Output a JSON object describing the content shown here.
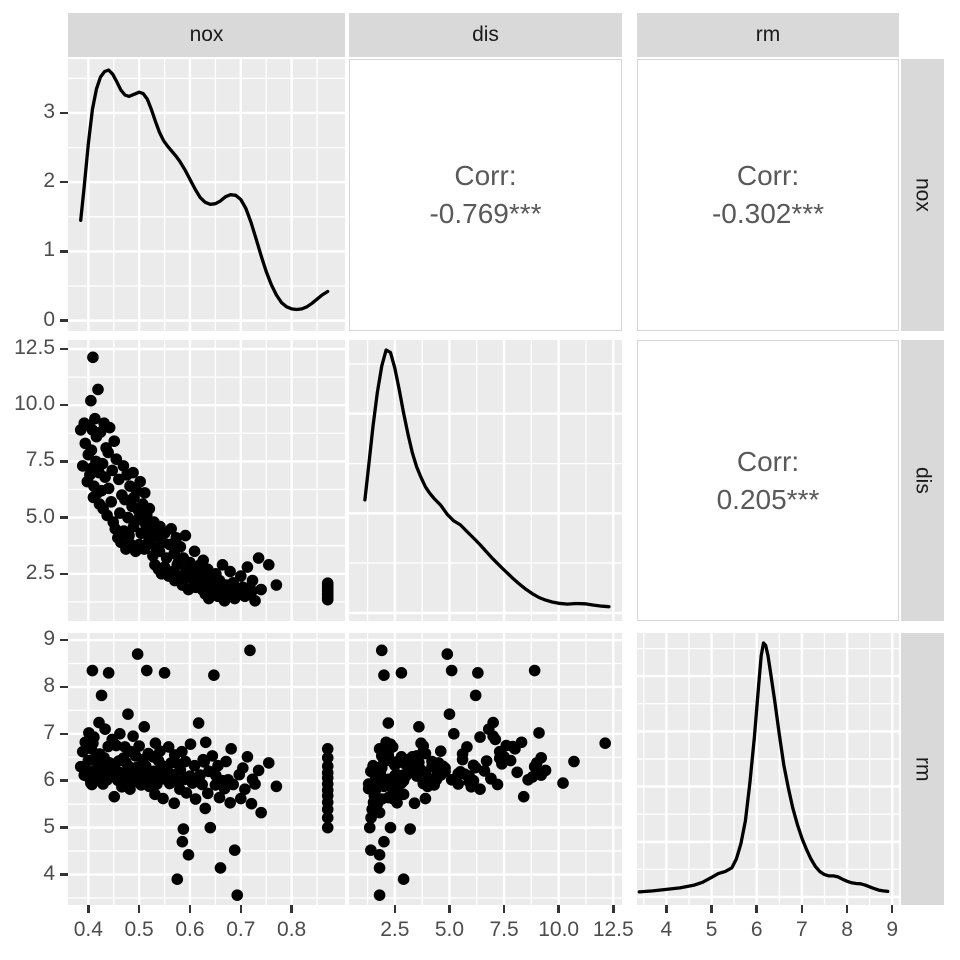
{
  "figure": {
    "kind": "ggpairs-matrix",
    "variables": [
      "nox",
      "dis",
      "rm"
    ]
  },
  "strips": {
    "top": [
      "nox",
      "dis",
      "rm"
    ],
    "right": [
      "nox",
      "dis",
      "rm"
    ]
  },
  "colors": {
    "panel_bg": "#EBEBEB",
    "strip_bg": "#D9D9D9",
    "grid": "#FFFFFF",
    "line": "#000000",
    "point": "#000000",
    "axis_text": "#4D4D4D",
    "corr_text": "#595959",
    "corr_border": "#D6D6D6",
    "strip_text": "#1A1A1A"
  },
  "axes": {
    "nox": {
      "ticks": [
        0.4,
        0.5,
        0.6,
        0.7,
        0.8
      ],
      "labels": [
        "0.4",
        "0.5",
        "0.6",
        "0.7",
        "0.8"
      ],
      "minor": [
        0.45,
        0.55,
        0.65,
        0.75,
        0.85
      ],
      "range": [
        0.36,
        0.905
      ]
    },
    "dis": {
      "ticks": [
        2.5,
        5.0,
        7.5,
        10.0,
        12.5
      ],
      "labels": [
        "2.5",
        "5.0",
        "7.5",
        "10.0",
        "12.5"
      ],
      "minor": [
        1.25,
        3.75,
        6.25,
        8.75,
        11.25
      ],
      "range": [
        0.4,
        12.9
      ]
    },
    "rm": {
      "ticks": [
        4,
        5,
        6,
        7,
        8,
        9
      ],
      "labels": [
        "4",
        "5",
        "6",
        "7",
        "8",
        "9"
      ],
      "minor": [
        3.5,
        4.5,
        5.5,
        6.5,
        7.5,
        8.5
      ],
      "range": [
        3.35,
        9.15
      ]
    },
    "nox_density_y": {
      "ticks": [
        0,
        1,
        2,
        3
      ],
      "labels": [
        "0",
        "1",
        "2",
        "3"
      ],
      "minor": [
        0.5,
        1.5,
        2.5,
        3.5
      ],
      "range": [
        -0.15,
        3.78
      ]
    }
  },
  "chart_data": [
    {
      "row": "nox",
      "col": "nox",
      "type": "density",
      "x_var": "nox",
      "y_axis": "nox_density_y",
      "points": [
        [
          0.385,
          1.45
        ],
        [
          0.392,
          1.95
        ],
        [
          0.4,
          2.55
        ],
        [
          0.408,
          3.05
        ],
        [
          0.416,
          3.35
        ],
        [
          0.424,
          3.52
        ],
        [
          0.432,
          3.6
        ],
        [
          0.44,
          3.62
        ],
        [
          0.448,
          3.56
        ],
        [
          0.456,
          3.45
        ],
        [
          0.464,
          3.33
        ],
        [
          0.472,
          3.26
        ],
        [
          0.48,
          3.24
        ],
        [
          0.49,
          3.27
        ],
        [
          0.5,
          3.3
        ],
        [
          0.508,
          3.28
        ],
        [
          0.516,
          3.2
        ],
        [
          0.524,
          3.05
        ],
        [
          0.532,
          2.88
        ],
        [
          0.54,
          2.72
        ],
        [
          0.548,
          2.6
        ],
        [
          0.556,
          2.52
        ],
        [
          0.564,
          2.45
        ],
        [
          0.572,
          2.38
        ],
        [
          0.58,
          2.3
        ],
        [
          0.59,
          2.18
        ],
        [
          0.6,
          2.04
        ],
        [
          0.61,
          1.9
        ],
        [
          0.62,
          1.78
        ],
        [
          0.63,
          1.71
        ],
        [
          0.64,
          1.68
        ],
        [
          0.65,
          1.69
        ],
        [
          0.66,
          1.73
        ],
        [
          0.67,
          1.79
        ],
        [
          0.68,
          1.82
        ],
        [
          0.69,
          1.81
        ],
        [
          0.7,
          1.75
        ],
        [
          0.71,
          1.62
        ],
        [
          0.72,
          1.42
        ],
        [
          0.73,
          1.18
        ],
        [
          0.74,
          0.94
        ],
        [
          0.75,
          0.71
        ],
        [
          0.76,
          0.52
        ],
        [
          0.77,
          0.37
        ],
        [
          0.78,
          0.26
        ],
        [
          0.79,
          0.2
        ],
        [
          0.8,
          0.17
        ],
        [
          0.81,
          0.16
        ],
        [
          0.82,
          0.17
        ],
        [
          0.83,
          0.2
        ],
        [
          0.84,
          0.25
        ],
        [
          0.85,
          0.31
        ],
        [
          0.86,
          0.37
        ],
        [
          0.871,
          0.42
        ]
      ]
    },
    {
      "row": "nox",
      "col": "dis",
      "type": "corr",
      "label_lines": [
        "Corr:",
        "-0.769***"
      ],
      "value": -0.769,
      "significance": "***"
    },
    {
      "row": "nox",
      "col": "rm",
      "type": "corr",
      "label_lines": [
        "Corr:",
        "-0.302***"
      ],
      "value": -0.302,
      "significance": "***"
    },
    {
      "row": "dis",
      "col": "nox",
      "type": "scatter",
      "x_var": "nox",
      "y_var": "dis",
      "x_index": 0,
      "y_index": 1
    },
    {
      "row": "dis",
      "col": "dis",
      "type": "density",
      "x_var": "dis",
      "y_scale": "relative",
      "y_grid_major_rel": [
        0,
        0.379,
        0.758
      ],
      "y_grid_minor_rel": [
        0.19,
        0.568,
        0.947
      ],
      "points": [
        [
          1.13,
          0.43
        ],
        [
          1.3,
          0.56
        ],
        [
          1.5,
          0.71
        ],
        [
          1.7,
          0.84
        ],
        [
          1.9,
          0.94
        ],
        [
          2.1,
          1.0
        ],
        [
          2.3,
          0.99
        ],
        [
          2.5,
          0.93
        ],
        [
          2.7,
          0.85
        ],
        [
          2.9,
          0.76
        ],
        [
          3.1,
          0.68
        ],
        [
          3.3,
          0.61
        ],
        [
          3.5,
          0.555
        ],
        [
          3.7,
          0.515
        ],
        [
          3.9,
          0.48
        ],
        [
          4.1,
          0.455
        ],
        [
          4.3,
          0.435
        ],
        [
          4.6,
          0.41
        ],
        [
          4.9,
          0.375
        ],
        [
          5.2,
          0.35
        ],
        [
          5.5,
          0.335
        ],
        [
          5.8,
          0.31
        ],
        [
          6.1,
          0.285
        ],
        [
          6.4,
          0.26
        ],
        [
          6.7,
          0.232
        ],
        [
          7.0,
          0.205
        ],
        [
          7.3,
          0.18
        ],
        [
          7.6,
          0.156
        ],
        [
          7.9,
          0.132
        ],
        [
          8.2,
          0.11
        ],
        [
          8.5,
          0.09
        ],
        [
          8.8,
          0.073
        ],
        [
          9.1,
          0.059
        ],
        [
          9.4,
          0.049
        ],
        [
          9.7,
          0.042
        ],
        [
          10.0,
          0.037
        ],
        [
          10.4,
          0.034
        ],
        [
          10.8,
          0.036
        ],
        [
          11.2,
          0.035
        ],
        [
          11.6,
          0.03
        ],
        [
          12.0,
          0.026
        ],
        [
          12.3,
          0.024
        ]
      ]
    },
    {
      "row": "dis",
      "col": "rm",
      "type": "corr",
      "label_lines": [
        "Corr:",
        "0.205***"
      ],
      "value": 0.205,
      "significance": "***"
    },
    {
      "row": "rm",
      "col": "nox",
      "type": "scatter",
      "x_var": "nox",
      "y_var": "rm",
      "x_index": 0,
      "y_index": 2
    },
    {
      "row": "rm",
      "col": "dis",
      "type": "scatter",
      "x_var": "dis",
      "y_var": "rm",
      "x_index": 1,
      "y_index": 2
    },
    {
      "row": "rm",
      "col": "rm",
      "type": "density",
      "x_var": "rm",
      "y_scale": "relative",
      "y_grid_major_rel": [
        0,
        0.217,
        0.435,
        0.652,
        0.87
      ],
      "y_grid_minor_rel": [
        0.109,
        0.326,
        0.543,
        0.761,
        0.978
      ],
      "points": [
        [
          3.4,
          0.02
        ],
        [
          3.7,
          0.024
        ],
        [
          4.0,
          0.03
        ],
        [
          4.3,
          0.036
        ],
        [
          4.6,
          0.046
        ],
        [
          4.8,
          0.058
        ],
        [
          5.0,
          0.077
        ],
        [
          5.15,
          0.092
        ],
        [
          5.3,
          0.1
        ],
        [
          5.45,
          0.115
        ],
        [
          5.55,
          0.15
        ],
        [
          5.65,
          0.21
        ],
        [
          5.75,
          0.3
        ],
        [
          5.85,
          0.45
        ],
        [
          5.95,
          0.63
        ],
        [
          6.0,
          0.74
        ],
        [
          6.05,
          0.85
        ],
        [
          6.1,
          0.95
        ],
        [
          6.15,
          1.0
        ],
        [
          6.2,
          0.99
        ],
        [
          6.25,
          0.95
        ],
        [
          6.3,
          0.89
        ],
        [
          6.4,
          0.77
        ],
        [
          6.5,
          0.64
        ],
        [
          6.6,
          0.52
        ],
        [
          6.7,
          0.43
        ],
        [
          6.8,
          0.35
        ],
        [
          6.9,
          0.285
        ],
        [
          7.0,
          0.232
        ],
        [
          7.1,
          0.188
        ],
        [
          7.2,
          0.15
        ],
        [
          7.3,
          0.12
        ],
        [
          7.4,
          0.1
        ],
        [
          7.5,
          0.088
        ],
        [
          7.6,
          0.083
        ],
        [
          7.7,
          0.083
        ],
        [
          7.8,
          0.079
        ],
        [
          7.9,
          0.07
        ],
        [
          8.0,
          0.062
        ],
        [
          8.1,
          0.056
        ],
        [
          8.2,
          0.053
        ],
        [
          8.3,
          0.052
        ],
        [
          8.4,
          0.047
        ],
        [
          8.5,
          0.04
        ],
        [
          8.6,
          0.033
        ],
        [
          8.7,
          0.027
        ],
        [
          8.8,
          0.024
        ],
        [
          8.9,
          0.022
        ]
      ]
    }
  ],
  "observations": [
    [
      0.385,
      8.9,
      6.3
    ],
    [
      0.389,
      7.3,
      6.62
    ],
    [
      0.392,
      9.2,
      6.12
    ],
    [
      0.394,
      8.3,
      6.82
    ],
    [
      0.398,
      6.6,
      6.21
    ],
    [
      0.4,
      7.8,
      6.43
    ],
    [
      0.401,
      9.1,
      7.02
    ],
    [
      0.403,
      6.9,
      6.04
    ],
    [
      0.405,
      10.2,
      5.95
    ],
    [
      0.406,
      8.0,
      6.68
    ],
    [
      0.407,
      7.2,
      5.92
    ],
    [
      0.409,
      12.13,
      6.8
    ],
    [
      0.41,
      5.9,
      6.1
    ],
    [
      0.411,
      6.4,
      6.93
    ],
    [
      0.408,
      8.9,
      8.35
    ],
    [
      0.413,
      9.4,
      6.22
    ],
    [
      0.415,
      7.5,
      6.51
    ],
    [
      0.416,
      8.6,
      6.02
    ],
    [
      0.418,
      6.1,
      6.33
    ],
    [
      0.419,
      10.7,
      6.41
    ],
    [
      0.421,
      7.0,
      7.24
    ],
    [
      0.422,
      5.6,
      6.57
    ],
    [
      0.424,
      8.8,
      6.08
    ],
    [
      0.426,
      6.2,
      7.82
    ],
    [
      0.428,
      7.4,
      6.36
    ],
    [
      0.429,
      5.4,
      5.93
    ],
    [
      0.431,
      9.2,
      6.49
    ],
    [
      0.433,
      6.8,
      7.1
    ],
    [
      0.435,
      8.1,
      6.18
    ],
    [
      0.437,
      5.1,
      6.02
    ],
    [
      0.439,
      7.9,
      6.73
    ],
    [
      0.44,
      6.3,
      8.3
    ],
    [
      0.442,
      9.0,
      6.38
    ],
    [
      0.445,
      5.7,
      6.14
    ],
    [
      0.447,
      7.1,
      6.88
    ],
    [
      0.449,
      4.8,
      6.27
    ],
    [
      0.451,
      8.4,
      5.66
    ],
    [
      0.453,
      4.5,
      6.23
    ],
    [
      0.455,
      7.6,
      6.75
    ],
    [
      0.458,
      4.1,
      6.01
    ],
    [
      0.46,
      6.7,
      6.42
    ],
    [
      0.462,
      5.2,
      7.0
    ],
    [
      0.464,
      3.9,
      6.17
    ],
    [
      0.466,
      6.0,
      5.87
    ],
    [
      0.469,
      7.3,
      6.48
    ],
    [
      0.47,
      4.4,
      6.09
    ],
    [
      0.472,
      5.8,
      6.72
    ],
    [
      0.474,
      3.6,
      6.39
    ],
    [
      0.476,
      6.9,
      6.05
    ],
    [
      0.478,
      5.0,
      7.42
    ],
    [
      0.48,
      4.2,
      6.3
    ],
    [
      0.482,
      6.4,
      5.82
    ],
    [
      0.484,
      3.8,
      6.62
    ],
    [
      0.486,
      5.5,
      6.19
    ],
    [
      0.488,
      7.0,
      6.95
    ],
    [
      0.489,
      4.6,
      6.12
    ],
    [
      0.49,
      5.9,
      5.98
    ],
    [
      0.493,
      3.5,
      6.53
    ],
    [
      0.495,
      6.2,
      6.28
    ],
    [
      0.497,
      4.9,
      8.7
    ],
    [
      0.499,
      5.3,
      6.04
    ],
    [
      0.5,
      3.8,
      6.74
    ],
    [
      0.502,
      6.6,
      6.21
    ],
    [
      0.504,
      4.3,
      5.91
    ],
    [
      0.507,
      5.6,
      6.45
    ],
    [
      0.51,
      3.6,
      7.15
    ],
    [
      0.511,
      6.1,
      6.0
    ],
    [
      0.513,
      4.7,
      6.31
    ],
    [
      0.515,
      5.1,
      8.35
    ],
    [
      0.518,
      3.9,
      6.58
    ],
    [
      0.52,
      4.0,
      5.88
    ],
    [
      0.52,
      5.4,
      6.15
    ],
    [
      0.524,
      4.4,
      6.02
    ],
    [
      0.527,
      3.3,
      6.51
    ],
    [
      0.529,
      4.8,
      6.2
    ],
    [
      0.531,
      2.9,
      5.71
    ],
    [
      0.532,
      3.7,
      6.8
    ],
    [
      0.535,
      4.2,
      5.93
    ],
    [
      0.538,
      2.7,
      6.43
    ],
    [
      0.54,
      3.5,
      6.1
    ],
    [
      0.541,
      4.6,
      6.63
    ],
    [
      0.544,
      2.5,
      6.33
    ],
    [
      0.547,
      3.9,
      5.62
    ],
    [
      0.55,
      4.3,
      6.04
    ],
    [
      0.55,
      2.8,
      8.3
    ],
    [
      0.554,
      3.2,
      6.24
    ],
    [
      0.558,
      2.4,
      6.72
    ],
    [
      0.56,
      3.8,
      5.94
    ],
    [
      0.563,
      4.5,
      6.38
    ],
    [
      0.566,
      2.6,
      6.13
    ],
    [
      0.569,
      3.4,
      5.52
    ],
    [
      0.57,
      2.2,
      6.55
    ],
    [
      0.573,
      4.1,
      6.01
    ],
    [
      0.575,
      2.9,
      3.9
    ],
    [
      0.577,
      3.0,
      6.35
    ],
    [
      0.58,
      2.4,
      5.82
    ],
    [
      0.581,
      3.7,
      6.23
    ],
    [
      0.584,
      2.1,
      6.62
    ],
    [
      0.585,
      2.0,
      4.7
    ],
    [
      0.587,
      3.2,
      4.97
    ],
    [
      0.59,
      2.5,
      6.03
    ],
    [
      0.591,
      4.2,
      6.41
    ],
    [
      0.593,
      2.7,
      5.74
    ],
    [
      0.597,
      1.8,
      4.42
    ],
    [
      0.6,
      3.0,
      6.1
    ],
    [
      0.601,
      2.3,
      6.78
    ],
    [
      0.605,
      2.8,
      5.95
    ],
    [
      0.609,
      3.5,
      6.32
    ],
    [
      0.611,
      1.9,
      5.61
    ],
    [
      0.614,
      2.6,
      6.0
    ],
    [
      0.617,
      2.2,
      7.23
    ],
    [
      0.62,
      2.9,
      6.12
    ],
    [
      0.624,
      1.8,
      5.92
    ],
    [
      0.626,
      3.1,
      6.45
    ],
    [
      0.628,
      2.4,
      6.4
    ],
    [
      0.63,
      1.6,
      5.41
    ],
    [
      0.631,
      2.1,
      6.82
    ],
    [
      0.635,
      2.7,
      5.73
    ],
    [
      0.637,
      1.4,
      6.2
    ],
    [
      0.64,
      2.3,
      5.0
    ],
    [
      0.644,
      1.9,
      6.53
    ],
    [
      0.647,
      2.0,
      8.25
    ],
    [
      0.65,
      1.7,
      5.91
    ],
    [
      0.651,
      2.5,
      6.11
    ],
    [
      0.655,
      1.5,
      6.32
    ],
    [
      0.658,
      2.2,
      5.64
    ],
    [
      0.66,
      1.8,
      4.14
    ],
    [
      0.664,
      2.9,
      6.0
    ],
    [
      0.668,
      1.3,
      5.83
    ],
    [
      0.671,
      2.0,
      6.41
    ],
    [
      0.675,
      1.6,
      6.02
    ],
    [
      0.679,
      2.6,
      5.53
    ],
    [
      0.681,
      1.8,
      6.68
    ],
    [
      0.685,
      2.1,
      5.92
    ],
    [
      0.688,
      1.4,
      4.52
    ],
    [
      0.693,
      1.8,
      3.56
    ],
    [
      0.697,
      1.6,
      6.13
    ],
    [
      0.7,
      2.4,
      5.62
    ],
    [
      0.704,
      1.9,
      6.27
    ],
    [
      0.708,
      1.5,
      5.82
    ],
    [
      0.713,
      2.8,
      6.51
    ],
    [
      0.718,
      1.9,
      8.78
    ],
    [
      0.721,
      1.7,
      5.51
    ],
    [
      0.723,
      2.2,
      6.03
    ],
    [
      0.728,
      1.3,
      5.93
    ],
    [
      0.735,
      3.2,
      6.22
    ],
    [
      0.74,
      1.8,
      5.32
    ],
    [
      0.755,
      2.9,
      6.38
    ],
    [
      0.77,
      2.0,
      5.88
    ],
    [
      0.871,
      1.35,
      5.0
    ],
    [
      0.871,
      1.41,
      5.21
    ],
    [
      0.871,
      1.46,
      5.39
    ],
    [
      0.871,
      1.52,
      5.54
    ],
    [
      0.871,
      1.56,
      5.68
    ],
    [
      0.871,
      1.61,
      5.8
    ],
    [
      0.871,
      1.7,
      5.93
    ],
    [
      0.871,
      1.76,
      6.06
    ],
    [
      0.871,
      1.83,
      6.17
    ],
    [
      0.871,
      1.9,
      6.31
    ],
    [
      0.871,
      1.98,
      6.49
    ],
    [
      0.871,
      2.08,
      6.68
    ]
  ]
}
